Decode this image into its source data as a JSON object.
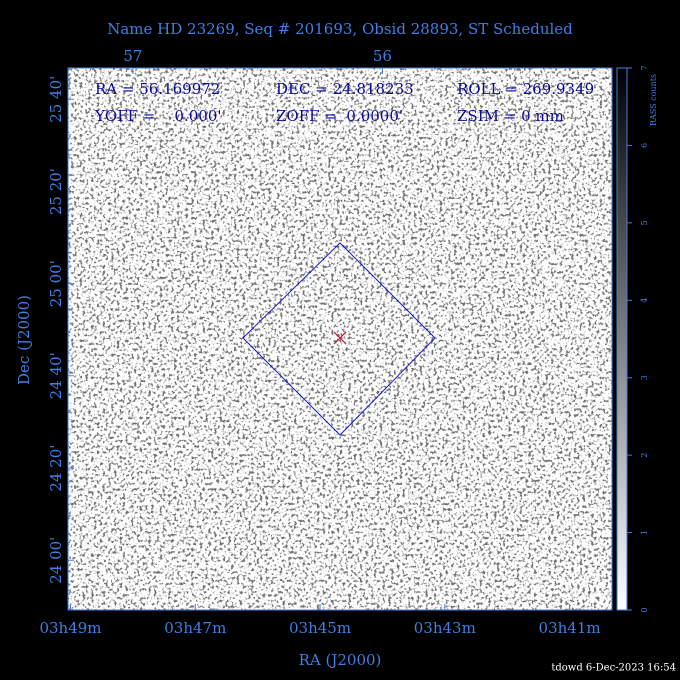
{
  "chart_data": {
    "type": "image",
    "title": "Name HD 23269, Seq # 201693, Obsid 28893, ST Scheduled",
    "info": [
      [
        "RA = 56.169972",
        "DEC = 24.818233",
        "ROLL = 269.9349"
      ],
      [
        "YOFF =    0.000'",
        "ZOFF =  0.0000'",
        "ZSIM = 0 mm"
      ]
    ],
    "xlabel": "RA (J2000)",
    "ylabel": "Dec (J2000)",
    "xlim": [
      57.26,
      55.08
    ],
    "xticks": [
      {
        "value": 57.25,
        "label": "03h49m"
      },
      {
        "value": 56.75,
        "label": "03h47m"
      },
      {
        "value": 56.25,
        "label": "03h45m"
      },
      {
        "value": 55.75,
        "label": "03h43m"
      },
      {
        "value": 55.25,
        "label": "03h41m"
      }
    ],
    "x2ticks": [
      57,
      56
    ],
    "ylim": [
      23.82,
      25.78
    ],
    "yticks": [
      {
        "value": 24,
        "label": "24 00'"
      },
      {
        "value": 24.333,
        "label": "24 20'"
      },
      {
        "value": 24.667,
        "label": "24 40'"
      },
      {
        "value": 25,
        "label": "25 00'"
      },
      {
        "value": 25.333,
        "label": "25 20'"
      },
      {
        "value": 25.667,
        "label": "25 40'"
      }
    ],
    "colorbar": {
      "label": "RASS counts",
      "lim": [
        0,
        7
      ],
      "ticks": [
        0,
        1,
        2,
        3,
        4,
        5,
        6,
        7
      ]
    },
    "footer": "tdowd  6-Dec-2023 16:54"
  }
}
